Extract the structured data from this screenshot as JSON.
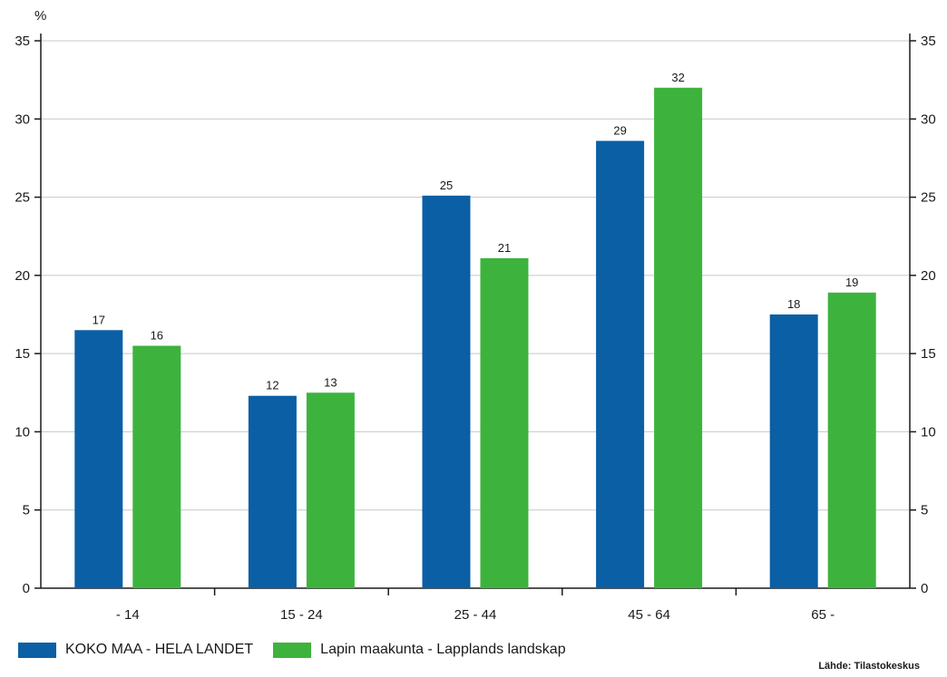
{
  "chart_data": {
    "type": "bar",
    "ylabel": "%",
    "ylim": [
      0,
      35
    ],
    "yticks": [
      0,
      5,
      10,
      15,
      20,
      25,
      30,
      35
    ],
    "grid": true,
    "secondary_y_axis": true,
    "categories": [
      "- 14",
      "15 - 24",
      "25 - 44",
      "45 - 64",
      "65 -"
    ],
    "series": [
      {
        "name": "KOKO MAA - HELA LANDET",
        "color": "#0B5FA5",
        "values": [
          16.5,
          12.3,
          25.1,
          28.6,
          17.5
        ],
        "labels": [
          "17",
          "12",
          "25",
          "29",
          "18"
        ]
      },
      {
        "name": "Lapin maakunta - Lapplands landskap",
        "color": "#3DB33D",
        "values": [
          15.5,
          12.5,
          21.1,
          32.0,
          18.9
        ],
        "labels": [
          "16",
          "13",
          "21",
          "32",
          "19"
        ]
      }
    ],
    "legend_position": "bottom-left",
    "source": "Lähde: Tilastokeskus"
  }
}
